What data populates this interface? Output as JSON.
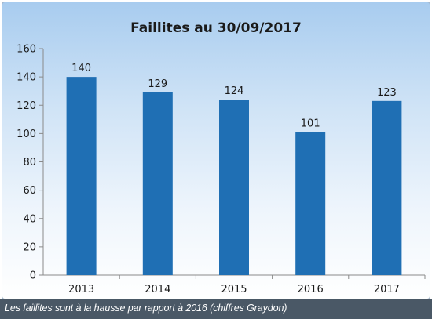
{
  "chart_data": {
    "type": "bar",
    "title": "Faillites au 30/09/2017",
    "categories": [
      "2013",
      "2014",
      "2015",
      "2016",
      "2017"
    ],
    "values": [
      140,
      129,
      124,
      101,
      123
    ],
    "data_labels": [
      "140",
      "129",
      "124",
      "101",
      "123"
    ],
    "ylim": [
      0,
      160
    ],
    "yticks": [
      "0",
      "20",
      "40",
      "60",
      "80",
      "100",
      "120",
      "140",
      "160"
    ],
    "xlabel": "",
    "ylabel": "",
    "grid": false,
    "bar_color": "#1f6fb4"
  },
  "caption": "Les faillites sont à la hausse par rapport à 2016 (chiffres Graydon)"
}
